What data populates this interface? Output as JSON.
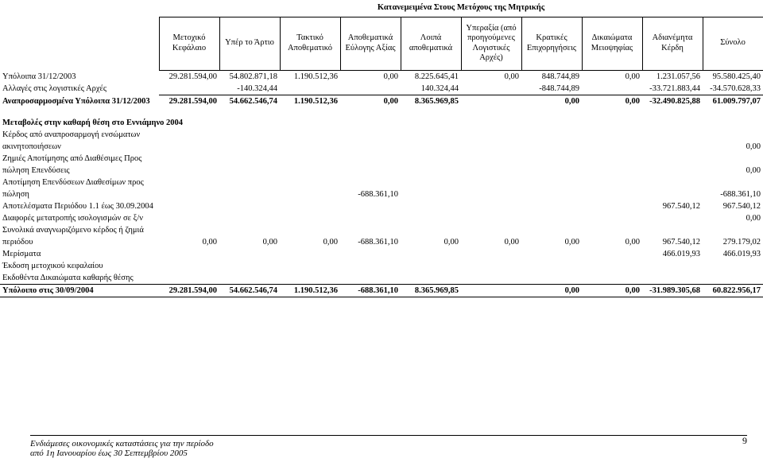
{
  "header": {
    "caption": "Κατανεμειμένα Στους Μετόχους της Μητρικής",
    "cols": [
      "Μετοχικό Κεφάλαιο",
      "Υπέρ το Άρτιο",
      "Τακτικό Αποθεματικό",
      "Αποθεματικά Εύλογης Αξίας",
      "Λοιπά αποθεματικά",
      "Υπεραξία (από προηγούμενες Λογιστικές Αρχές)",
      "Κρατικές Επιχορηγήσεις",
      "Δικαιώματα Μειοψηφίας",
      "Αδιανέμητα Κέρδη",
      "Σύνολο"
    ]
  },
  "rows": [
    {
      "label": "Υπόλοιπα 31/12/2003",
      "v": [
        "29.281.594,00",
        "54.802.871,18",
        "1.190.512,36",
        "0,00",
        "8.225.645,41",
        "0,00",
        "848.744,89",
        "0,00",
        "1.231.057,56",
        "95.580.425,40"
      ]
    },
    {
      "label": "Αλλαγές στις λογιστικές Αρχές",
      "v": [
        "",
        "",
        "-140.324,44",
        "",
        "",
        "140.324,44",
        "",
        "-848.744,89",
        "",
        "-33.721.883,44",
        "-34.570.628,33"
      ],
      "fix": true
    },
    {
      "label": "Αναπροσαρμοσμένα Υπόλοιπα 31/12/2003",
      "bold": true,
      "btop": true,
      "v": [
        "29.281.594,00",
        "54.662.546,74",
        "1.190.512,36",
        "0,00",
        "8.365.969,85",
        "0,00",
        "0,00",
        "-32.490.825,88",
        "61.009.797,07"
      ],
      "span2": true
    }
  ],
  "section_title": "Μεταβολές στην καθαρή θέση στο Εννιάμηνο 2004",
  "rows2": [
    {
      "label": "Κέρδος από αναπροσαρμογή ενσώματων"
    },
    {
      "label": "ακινητοποιήσεων",
      "v": [
        "",
        "",
        "",
        "",
        "",
        "",
        "",
        "",
        "",
        "0,00"
      ]
    },
    {
      "label": "Ζημιές Αποτίμησης από Διαθέσιμες Προς"
    },
    {
      "label": "πώληση Επενδύσεις",
      "v": [
        "",
        "",
        "",
        "",
        "",
        "",
        "",
        "",
        "",
        "0,00"
      ]
    },
    {
      "label": "Αποτίμηση Επενδύσεων Διαθεσίμων προς"
    },
    {
      "label": "πώληση",
      "v": [
        "",
        "",
        "",
        "-688.361,10",
        "",
        "",
        "",
        "",
        "",
        "-688.361,10"
      ]
    },
    {
      "label": "Αποτελέσματα Περιόδου 1.1 έως 30.09.2004",
      "v": [
        "",
        "",
        "",
        "",
        "",
        "",
        "",
        "",
        "967.540,12",
        "967.540,12"
      ]
    },
    {
      "label": "Διαφορές μετατροπής ισολογισμών σε ξ/ν",
      "v": [
        "",
        "",
        "",
        "",
        "",
        "",
        "",
        "",
        "",
        "0,00"
      ]
    },
    {
      "label": "Συνολικά αναγνωριζόμενο κέρδος ή ζημιά"
    },
    {
      "label": "περιόδου",
      "v": [
        "0,00",
        "0,00",
        "0,00",
        "-688.361,10",
        "0,00",
        "0,00",
        "0,00",
        "0,00",
        "967.540,12",
        "279.179,02"
      ]
    },
    {
      "label": "Μερίσματα",
      "v": [
        "",
        "",
        "",
        "",
        "",
        "",
        "",
        "",
        "466.019,93",
        "466.019,93"
      ]
    },
    {
      "label": "Έκδοση μετοχικού κεφαλαίου"
    },
    {
      "label": "Εκδοθέντα Δικαιώματα καθαρής θέσης"
    }
  ],
  "final": {
    "label": "Υπόλοιπο στις 30/09/2004",
    "v": [
      "29.281.594,00",
      "54.662.546,74",
      "1.190.512,36",
      "-688.361,10",
      "8.365.969,85",
      "",
      "0,00",
      "0,00",
      "-31.989.305,68",
      "60.822.956,17"
    ]
  },
  "footer": {
    "line1": "Ενδιάμεσες οικονομικές καταστάσεις για την  περίοδο",
    "line2": "από 1η Ιανουαρίου έως 30 Σεπτεμβρίου 2005",
    "page": "9"
  }
}
